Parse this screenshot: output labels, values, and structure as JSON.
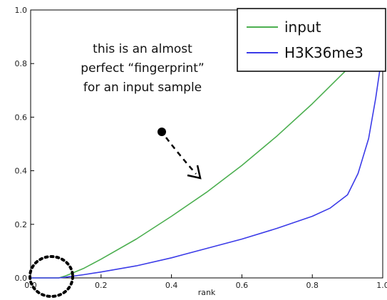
{
  "chart_data": {
    "type": "line",
    "xlabel": "rank",
    "ylabel": "",
    "xlim": [
      0.0,
      1.0
    ],
    "ylim": [
      0.0,
      1.0
    ],
    "x_ticks": [
      "0.0",
      "0.2",
      "0.4",
      "0.6",
      "0.8",
      "1.0"
    ],
    "y_ticks": [
      "0.0",
      "0.2",
      "0.4",
      "0.6",
      "0.8",
      "1.0"
    ],
    "grid": false,
    "legend_position": "top-right",
    "series": [
      {
        "name": "input",
        "color": "#4caf50",
        "x": [
          0.0,
          0.04,
          0.08,
          0.1,
          0.15,
          0.2,
          0.3,
          0.4,
          0.5,
          0.6,
          0.7,
          0.8,
          0.9,
          0.95
        ],
        "y": [
          0.0,
          0.0,
          0.0,
          0.008,
          0.035,
          0.07,
          0.145,
          0.23,
          0.32,
          0.42,
          0.53,
          0.65,
          0.78,
          0.85
        ]
      },
      {
        "name": "H3K36me3",
        "color": "#3b3be8",
        "x": [
          0.0,
          0.08,
          0.1,
          0.15,
          0.2,
          0.3,
          0.4,
          0.5,
          0.6,
          0.7,
          0.8,
          0.85,
          0.9,
          0.93,
          0.96,
          0.98,
          1.0
        ],
        "y": [
          0.0,
          0.0,
          0.003,
          0.012,
          0.022,
          0.045,
          0.075,
          0.11,
          0.145,
          0.185,
          0.23,
          0.26,
          0.31,
          0.39,
          0.52,
          0.67,
          0.85
        ]
      }
    ],
    "annotations": [
      {
        "lines": [
          "this is an almost",
          "perfect “fingerprint”",
          "for an input sample"
        ]
      }
    ]
  }
}
